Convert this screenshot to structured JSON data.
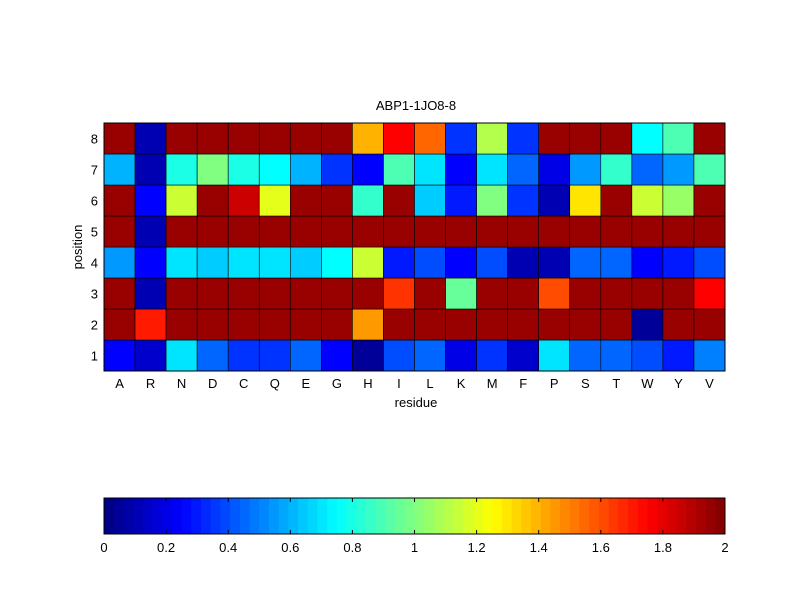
{
  "chart_data": {
    "type": "heatmap",
    "title": "ABP1-1JO8-8",
    "xlabel": "residue",
    "ylabel": "position",
    "x_categories": [
      "A",
      "R",
      "N",
      "D",
      "C",
      "Q",
      "E",
      "G",
      "H",
      "I",
      "L",
      "K",
      "M",
      "F",
      "P",
      "S",
      "T",
      "W",
      "Y",
      "V"
    ],
    "y_categories": [
      "1",
      "2",
      "3",
      "4",
      "5",
      "6",
      "7",
      "8"
    ],
    "values": [
      [
        0.25,
        0.15,
        0.7,
        0.45,
        0.35,
        0.35,
        0.45,
        0.25,
        0.05,
        0.4,
        0.45,
        0.2,
        0.35,
        0.15,
        0.7,
        0.45,
        0.45,
        0.4,
        0.3,
        0.5
      ],
      [
        1.95,
        1.7,
        1.95,
        1.95,
        1.95,
        1.95,
        1.95,
        1.95,
        1.45,
        1.95,
        1.95,
        1.95,
        1.95,
        1.95,
        1.95,
        1.95,
        1.95,
        0.05,
        1.95,
        1.95
      ],
      [
        1.95,
        0.1,
        1.95,
        1.95,
        1.95,
        1.95,
        1.95,
        1.95,
        1.95,
        1.65,
        1.95,
        0.95,
        1.95,
        1.95,
        1.6,
        1.95,
        1.95,
        1.95,
        1.95,
        1.75
      ],
      [
        0.55,
        0.25,
        0.7,
        0.65,
        0.7,
        0.7,
        0.65,
        0.75,
        1.15,
        0.3,
        0.4,
        0.25,
        0.4,
        0.1,
        0.1,
        0.45,
        0.45,
        0.25,
        0.3,
        0.4
      ],
      [
        1.95,
        0.1,
        1.95,
        1.95,
        1.95,
        1.95,
        1.95,
        1.95,
        1.95,
        1.95,
        1.95,
        1.95,
        1.95,
        1.95,
        1.95,
        1.95,
        1.95,
        1.95,
        1.95,
        1.95
      ],
      [
        1.95,
        0.25,
        1.15,
        1.95,
        1.85,
        1.2,
        1.95,
        1.95,
        0.85,
        1.95,
        0.65,
        0.3,
        1.0,
        0.35,
        0.1,
        1.3,
        1.95,
        1.15,
        1.05,
        1.95
      ],
      [
        0.6,
        0.1,
        0.8,
        1.0,
        0.8,
        0.75,
        0.6,
        0.35,
        0.25,
        0.9,
        0.7,
        0.25,
        0.7,
        0.45,
        0.2,
        0.55,
        0.85,
        0.45,
        0.55,
        0.9
      ],
      [
        1.95,
        0.1,
        1.95,
        1.95,
        1.95,
        1.95,
        1.95,
        1.95,
        1.4,
        1.75,
        1.55,
        0.35,
        1.1,
        0.35,
        1.95,
        1.95,
        1.95,
        0.75,
        0.9,
        1.95
      ]
    ],
    "colormap": "jet",
    "colorbar": {
      "range": [
        0,
        2
      ],
      "ticks": [
        "0",
        "0.2",
        "0.4",
        "0.6",
        "0.8",
        "1",
        "1.2",
        "1.4",
        "1.6",
        "1.8",
        "2"
      ],
      "placement": "bottom"
    }
  }
}
